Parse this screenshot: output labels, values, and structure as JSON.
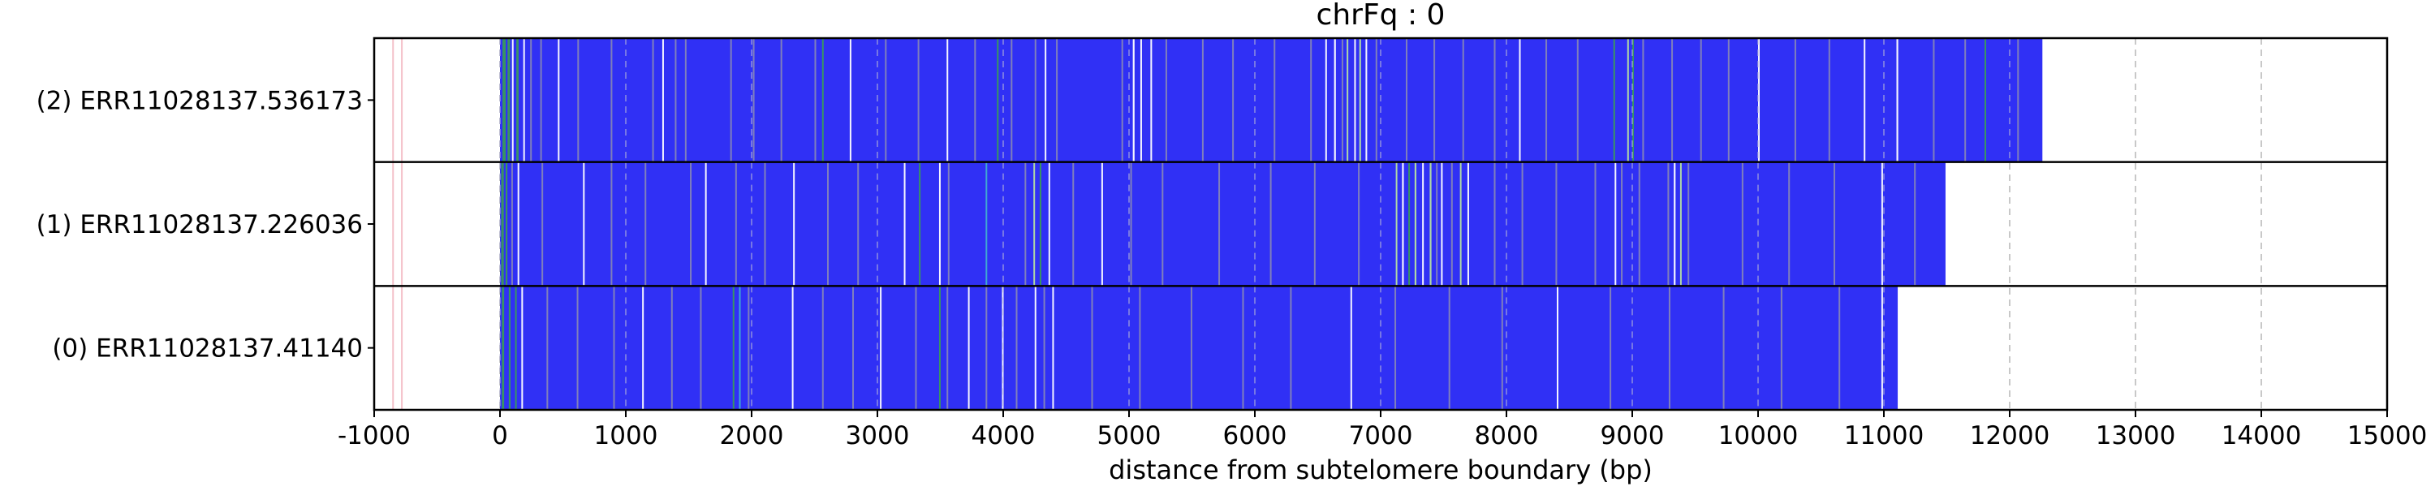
{
  "chart_data": {
    "type": "heatmap",
    "title": "chrFq : 0",
    "xlabel": "distance from subtelomere boundary (bp)",
    "ylabel": "",
    "xlim": [
      -1000,
      15000
    ],
    "xticks": [
      -1000,
      0,
      1000,
      2000,
      3000,
      4000,
      5000,
      6000,
      7000,
      8000,
      9000,
      10000,
      11000,
      12000,
      13000,
      14000,
      15000
    ],
    "xtick_labels": [
      "-1000",
      "0",
      "1000",
      "2000",
      "3000",
      "4000",
      "5000",
      "6000",
      "7000",
      "8000",
      "9000",
      "10000",
      "11000",
      "12000",
      "13000",
      "14000",
      "15000"
    ],
    "grid": {
      "x": true,
      "style": "dashed",
      "color": "#c8c8c8"
    },
    "colors": {
      "base": "#3030f5",
      "white": "#ffffff",
      "green": "#3a9a5a",
      "light_green": "#b6e0a0",
      "gray": "#9a9aa8",
      "cyan": "#40b0d0",
      "pink": "#f4c0c8"
    },
    "rows": [
      {
        "label": "(2) ERR11028137.536173",
        "start": 0,
        "end": 12260,
        "marks": [
          [
            20,
            25,
            "green"
          ],
          [
            60,
            20,
            "green"
          ],
          [
            95,
            12,
            "white"
          ],
          [
            130,
            18,
            "green"
          ],
          [
            185,
            10,
            "white"
          ],
          [
            240,
            8,
            "gray"
          ],
          [
            320,
            10,
            "gray"
          ],
          [
            460,
            10,
            "white"
          ],
          [
            615,
            8,
            "gray"
          ],
          [
            880,
            10,
            "gray"
          ],
          [
            1210,
            10,
            "gray"
          ],
          [
            1290,
            8,
            "white"
          ],
          [
            1390,
            10,
            "gray"
          ],
          [
            1470,
            8,
            "gray"
          ],
          [
            1830,
            8,
            "gray"
          ],
          [
            2010,
            8,
            "gray"
          ],
          [
            2230,
            10,
            "gray"
          ],
          [
            2500,
            8,
            "gray"
          ],
          [
            2560,
            8,
            "green"
          ],
          [
            2780,
            10,
            "white"
          ],
          [
            3060,
            8,
            "gray"
          ],
          [
            3320,
            8,
            "gray"
          ],
          [
            3550,
            10,
            "white"
          ],
          [
            3770,
            10,
            "gray"
          ],
          [
            3950,
            12,
            "green"
          ],
          [
            4060,
            10,
            "gray"
          ],
          [
            4250,
            10,
            "gray"
          ],
          [
            4330,
            8,
            "white"
          ],
          [
            4420,
            10,
            "gray"
          ],
          [
            4940,
            10,
            "gray"
          ],
          [
            5030,
            14,
            "white"
          ],
          [
            5090,
            12,
            "white"
          ],
          [
            5170,
            10,
            "white"
          ],
          [
            5290,
            10,
            "gray"
          ],
          [
            5580,
            8,
            "gray"
          ],
          [
            5820,
            10,
            "gray"
          ],
          [
            6150,
            10,
            "gray"
          ],
          [
            6440,
            10,
            "gray"
          ],
          [
            6560,
            10,
            "white"
          ],
          [
            6630,
            14,
            "white"
          ],
          [
            6690,
            12,
            "gray"
          ],
          [
            6730,
            12,
            "light_green"
          ],
          [
            6790,
            10,
            "white"
          ],
          [
            6830,
            14,
            "light_green"
          ],
          [
            6880,
            12,
            "white"
          ],
          [
            6960,
            10,
            "gray"
          ],
          [
            7200,
            10,
            "gray"
          ],
          [
            7420,
            8,
            "gray"
          ],
          [
            7650,
            10,
            "gray"
          ],
          [
            7900,
            10,
            "gray"
          ],
          [
            8100,
            10,
            "white"
          ],
          [
            8310,
            8,
            "gray"
          ],
          [
            8560,
            10,
            "gray"
          ],
          [
            8850,
            10,
            "green"
          ],
          [
            8960,
            12,
            "light_green"
          ],
          [
            9000,
            10,
            "green"
          ],
          [
            9080,
            10,
            "gray"
          ],
          [
            9310,
            10,
            "gray"
          ],
          [
            9540,
            10,
            "gray"
          ],
          [
            9760,
            10,
            "gray"
          ],
          [
            10000,
            10,
            "white"
          ],
          [
            10290,
            10,
            "gray"
          ],
          [
            10560,
            10,
            "gray"
          ],
          [
            10840,
            10,
            "white"
          ],
          [
            11100,
            14,
            "white"
          ],
          [
            11390,
            10,
            "gray"
          ],
          [
            11640,
            8,
            "gray"
          ],
          [
            11800,
            8,
            "green"
          ],
          [
            12060,
            10,
            "gray"
          ]
        ]
      },
      {
        "label": "(1) ERR11028137.226036",
        "start": 0,
        "end": 11490,
        "marks": [
          [
            10,
            20,
            "green"
          ],
          [
            45,
            14,
            "green"
          ],
          [
            90,
            10,
            "gray"
          ],
          [
            140,
            10,
            "white"
          ],
          [
            330,
            8,
            "gray"
          ],
          [
            660,
            12,
            "white"
          ],
          [
            880,
            8,
            "gray"
          ],
          [
            1150,
            10,
            "gray"
          ],
          [
            1510,
            8,
            "gray"
          ],
          [
            1630,
            10,
            "white"
          ],
          [
            1870,
            8,
            "gray"
          ],
          [
            2100,
            8,
            "gray"
          ],
          [
            2330,
            12,
            "white"
          ],
          [
            2600,
            10,
            "gray"
          ],
          [
            2840,
            10,
            "gray"
          ],
          [
            3210,
            10,
            "white"
          ],
          [
            3330,
            8,
            "green"
          ],
          [
            3490,
            10,
            "white"
          ],
          [
            3560,
            8,
            "gray"
          ],
          [
            3860,
            8,
            "cyan"
          ],
          [
            4170,
            12,
            "gray"
          ],
          [
            4240,
            12,
            "light_green"
          ],
          [
            4290,
            10,
            "green"
          ],
          [
            4360,
            10,
            "white"
          ],
          [
            4550,
            8,
            "gray"
          ],
          [
            4780,
            10,
            "white"
          ],
          [
            5010,
            8,
            "gray"
          ],
          [
            5260,
            10,
            "gray"
          ],
          [
            5710,
            8,
            "gray"
          ],
          [
            6120,
            10,
            "gray"
          ],
          [
            6470,
            10,
            "gray"
          ],
          [
            6820,
            10,
            "gray"
          ],
          [
            7120,
            12,
            "light_green"
          ],
          [
            7170,
            14,
            "white"
          ],
          [
            7220,
            12,
            "green"
          ],
          [
            7270,
            14,
            "light_green"
          ],
          [
            7330,
            12,
            "white"
          ],
          [
            7390,
            14,
            "light_green"
          ],
          [
            7440,
            12,
            "gray"
          ],
          [
            7480,
            10,
            "white"
          ],
          [
            7560,
            10,
            "gray"
          ],
          [
            7630,
            12,
            "light_green"
          ],
          [
            7690,
            10,
            "white"
          ],
          [
            7900,
            10,
            "gray"
          ],
          [
            8120,
            8,
            "gray"
          ],
          [
            8390,
            8,
            "gray"
          ],
          [
            8700,
            8,
            "gray"
          ],
          [
            8860,
            12,
            "white"
          ],
          [
            8910,
            10,
            "gray"
          ],
          [
            9050,
            8,
            "gray"
          ],
          [
            9280,
            12,
            "gray"
          ],
          [
            9330,
            14,
            "white"
          ],
          [
            9380,
            12,
            "light_green"
          ],
          [
            9440,
            10,
            "gray"
          ],
          [
            9870,
            8,
            "gray"
          ],
          [
            10240,
            10,
            "gray"
          ],
          [
            10600,
            8,
            "gray"
          ],
          [
            10980,
            10,
            "white"
          ],
          [
            11240,
            8,
            "gray"
          ]
        ]
      },
      {
        "label": "(0) ERR11028137.41140",
        "start": 0,
        "end": 11110,
        "marks": [
          [
            15,
            18,
            "green"
          ],
          [
            70,
            14,
            "green"
          ],
          [
            120,
            10,
            "green"
          ],
          [
            170,
            8,
            "white"
          ],
          [
            370,
            10,
            "gray"
          ],
          [
            610,
            8,
            "gray"
          ],
          [
            900,
            8,
            "gray"
          ],
          [
            1130,
            10,
            "white"
          ],
          [
            1360,
            8,
            "gray"
          ],
          [
            1590,
            8,
            "gray"
          ],
          [
            1850,
            12,
            "green"
          ],
          [
            1900,
            10,
            "cyan"
          ],
          [
            1970,
            8,
            "gray"
          ],
          [
            2320,
            10,
            "white"
          ],
          [
            2560,
            8,
            "gray"
          ],
          [
            2800,
            8,
            "gray"
          ],
          [
            3020,
            10,
            "white"
          ],
          [
            3300,
            10,
            "gray"
          ],
          [
            3490,
            10,
            "green"
          ],
          [
            3550,
            8,
            "gray"
          ],
          [
            3720,
            12,
            "white"
          ],
          [
            3860,
            10,
            "gray"
          ],
          [
            3990,
            10,
            "white"
          ],
          [
            4100,
            10,
            "gray"
          ],
          [
            4250,
            10,
            "white"
          ],
          [
            4320,
            10,
            "gray"
          ],
          [
            4390,
            8,
            "white"
          ],
          [
            4700,
            8,
            "gray"
          ],
          [
            5080,
            10,
            "gray"
          ],
          [
            5490,
            10,
            "gray"
          ],
          [
            5900,
            8,
            "gray"
          ],
          [
            6280,
            8,
            "gray"
          ],
          [
            6760,
            10,
            "white"
          ],
          [
            7110,
            8,
            "gray"
          ],
          [
            7540,
            8,
            "gray"
          ],
          [
            7960,
            8,
            "gray"
          ],
          [
            8400,
            10,
            "white"
          ],
          [
            8820,
            8,
            "gray"
          ],
          [
            9290,
            8,
            "gray"
          ],
          [
            9720,
            8,
            "gray"
          ],
          [
            10180,
            10,
            "gray"
          ],
          [
            10640,
            8,
            "gray"
          ],
          [
            10980,
            8,
            "white"
          ]
        ]
      }
    ]
  }
}
